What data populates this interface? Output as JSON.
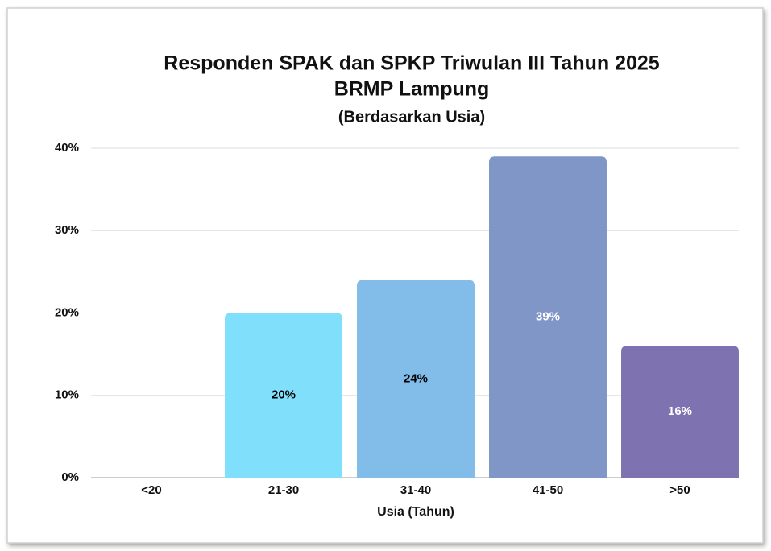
{
  "chart_data": {
    "type": "bar",
    "title": [
      "Responden SPAK dan SPKP Triwulan III Tahun 2025",
      "BRMP Lampung"
    ],
    "subtitle": "(Berdasarkan Usia)",
    "x_label": "Usia (Tahun)",
    "categories": [
      "<20",
      "21-30",
      "31-40",
      "41-50",
      ">50"
    ],
    "values": [
      0,
      20,
      24,
      39,
      16
    ],
    "value_labels": [
      null,
      "20%",
      "24%",
      "39%",
      "16%"
    ],
    "colors": [
      "#80e0fc",
      "#80e0fc",
      "#82bdea",
      "#7f96c6",
      "#7f72b1"
    ],
    "value_label_colors": [
      "#000000",
      "#000000",
      "#000000",
      "#ffffff",
      "#ffffff"
    ],
    "ylim": [
      0,
      40
    ],
    "yticks": [
      {
        "value": 0,
        "label": "0%"
      },
      {
        "value": 10,
        "label": "10%"
      },
      {
        "value": 20,
        "label": "20%"
      },
      {
        "value": 30,
        "label": "30%"
      },
      {
        "value": 40,
        "label": "40%"
      }
    ],
    "grid": true
  }
}
